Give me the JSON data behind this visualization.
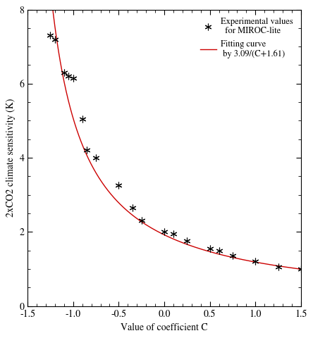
{
  "title": "",
  "xlabel": "Value of coefficient C",
  "ylabel": "2xCO2 climate sensitivity (K)",
  "xlim": [
    -1.5,
    1.5
  ],
  "ylim": [
    0,
    8
  ],
  "xticks": [
    -1.5,
    -1.0,
    -0.5,
    0.0,
    0.5,
    1.0,
    1.5
  ],
  "yticks": [
    0,
    2,
    4,
    6,
    8
  ],
  "curve_a": 3.09,
  "curve_b": 1.61,
  "exp_x": [
    -1.25,
    -1.2,
    -1.1,
    -1.05,
    -1.0,
    -0.9,
    -0.85,
    -0.75,
    -0.5,
    -0.35,
    -0.25,
    0.0,
    0.1,
    0.25,
    0.5,
    0.6,
    0.75,
    1.0,
    1.25,
    1.5
  ],
  "exp_y": [
    7.3,
    7.2,
    6.3,
    6.2,
    6.15,
    5.05,
    4.2,
    4.0,
    3.25,
    2.65,
    2.3,
    2.0,
    1.95,
    1.75,
    1.55,
    1.5,
    1.35,
    1.2,
    1.05,
    1.0
  ],
  "curve_color": "#cc0000",
  "marker_color": "#000000",
  "background_color": "#ffffff",
  "legend_star_label": "Experimental values\n  for MIROC-lite",
  "legend_curve_label": "Fitting curve\n by 3.09/(C+1.61)",
  "fontsize": 10,
  "tick_fontsize": 10,
  "legend_fontsize": 9
}
